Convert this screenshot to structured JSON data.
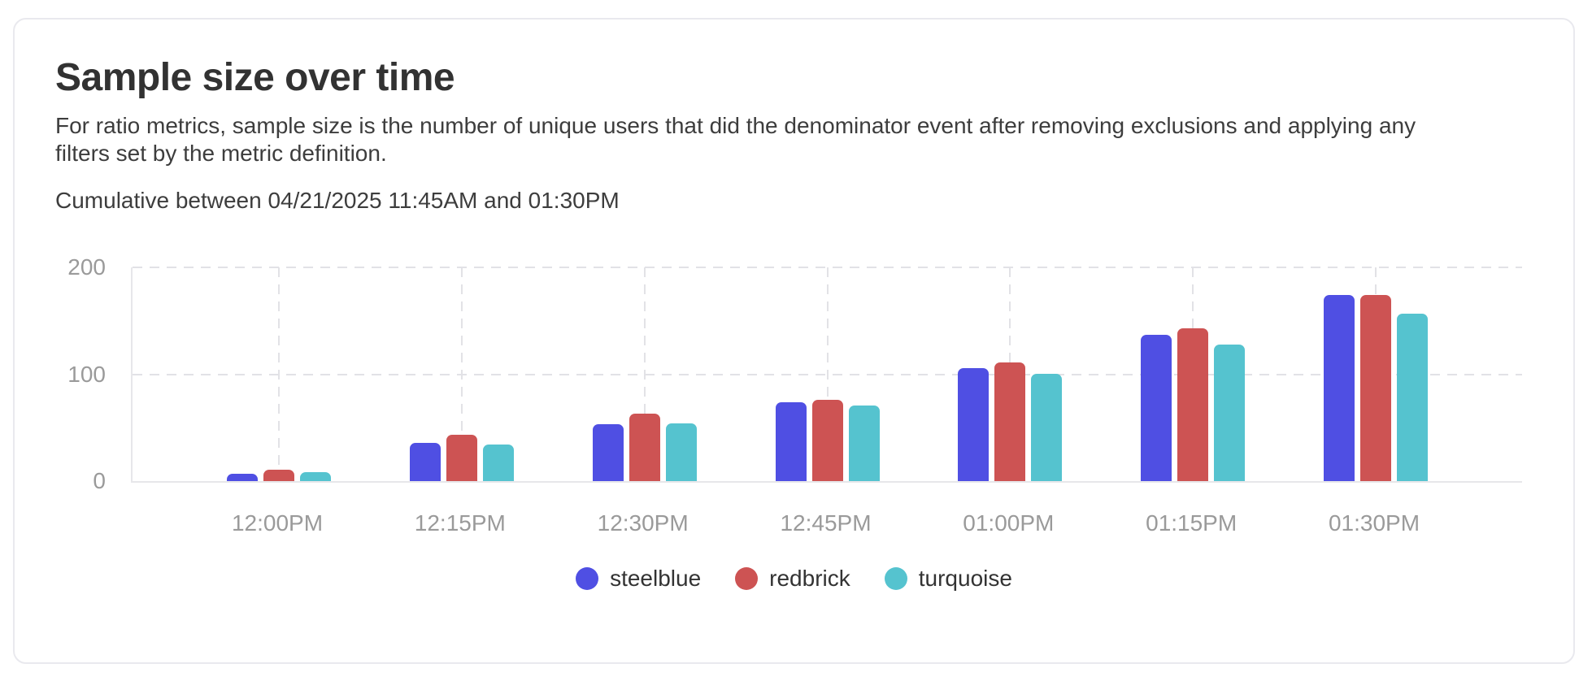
{
  "card": {
    "title": "Sample size over time",
    "description_lines": [
      "For ratio metrics, sample size is the number of unique users that did the denominator event after removing exclusions and applying any",
      "filters set by the metric definition."
    ],
    "range_label": "Cumulative between 04/21/2025 11:45AM and 01:30PM"
  },
  "chart_data": {
    "type": "bar",
    "title": "Sample size over time",
    "categories": [
      "12:00PM",
      "12:15PM",
      "12:30PM",
      "12:45PM",
      "01:00PM",
      "01:15PM",
      "01:30PM"
    ],
    "series": [
      {
        "name": "steelblue",
        "color": "#4f4fe3",
        "values": [
          7,
          36,
          53,
          74,
          106,
          137,
          174
        ]
      },
      {
        "name": "redbrick",
        "color": "#cd5353",
        "values": [
          11,
          43,
          63,
          76,
          111,
          143,
          174
        ]
      },
      {
        "name": "turquoise",
        "color": "#55c3cf",
        "values": [
          8,
          34,
          54,
          71,
          100,
          128,
          157
        ]
      }
    ],
    "xlabel": "",
    "ylabel": "",
    "ylim": [
      0,
      200
    ],
    "yticks": [
      0,
      100,
      200
    ],
    "grid": "dashed horizontal at 100 and 200, dashed vertical at each category center",
    "legend_position": "bottom-center"
  },
  "colors": {
    "axis_label": "#9a9a9a",
    "gridline": "#e2e2e6",
    "axis_line": "#e7e7ea",
    "card_border": "#e9e9ee",
    "text": "#3d3d3d"
  }
}
